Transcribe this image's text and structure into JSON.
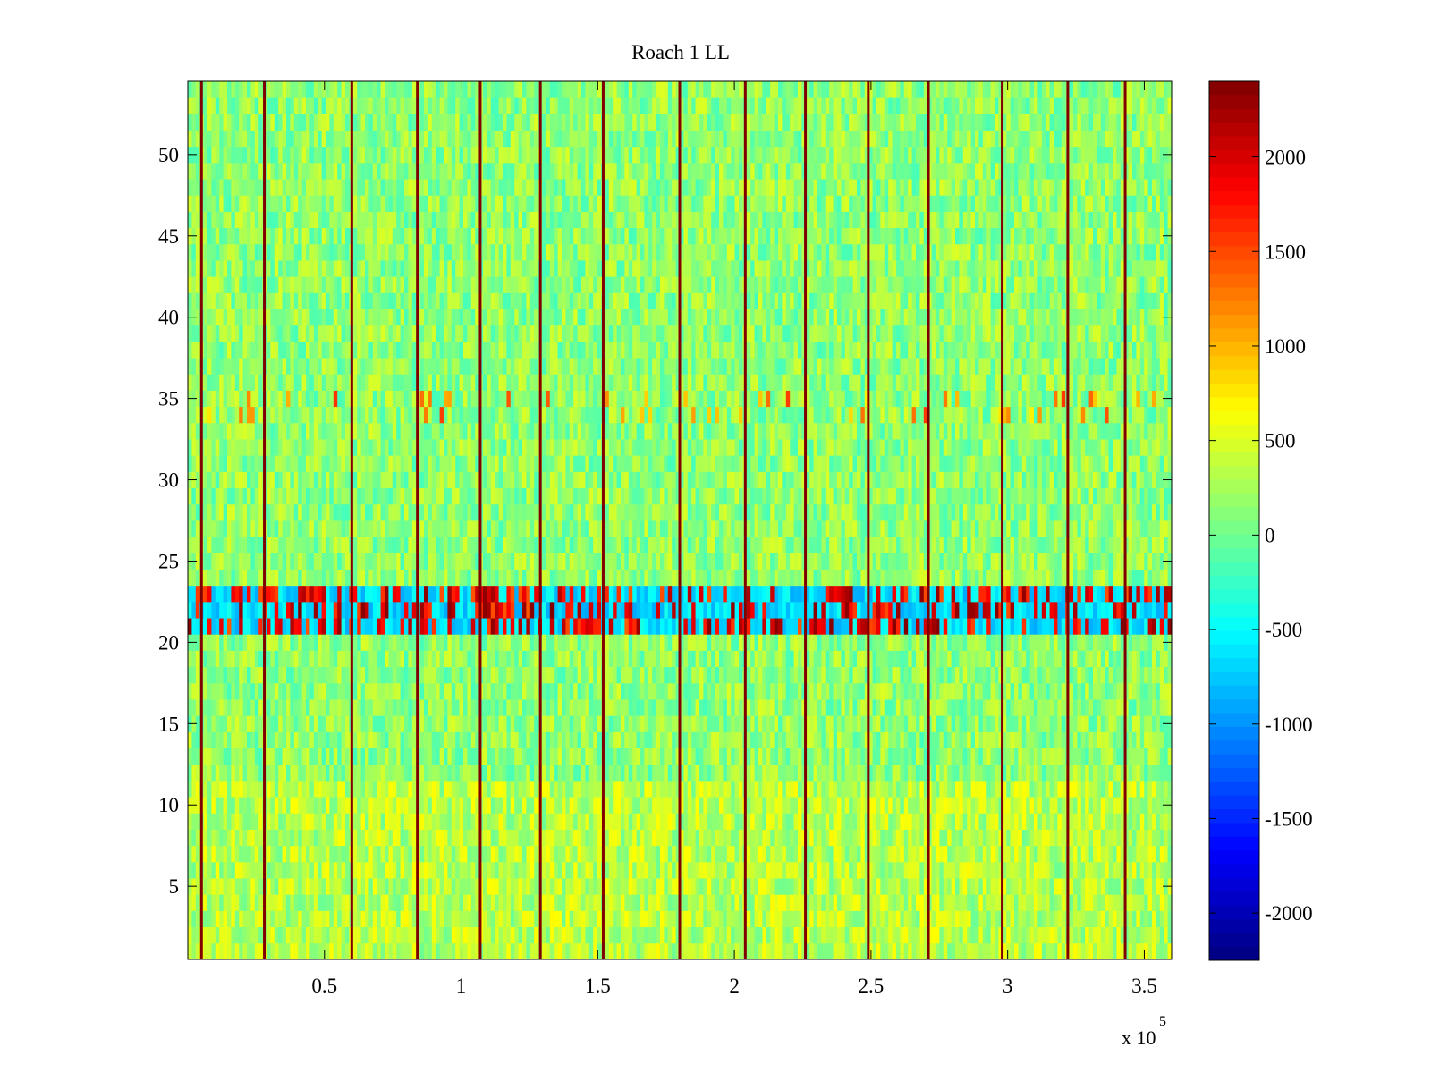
{
  "chart_data": {
    "type": "heatmap",
    "title": "Roach 1 LL",
    "xlabel": "",
    "ylabel": "",
    "x_exponent_label": "x 10",
    "x_exponent_power": "5",
    "xlim": [
      0,
      360000
    ],
    "ylim": [
      0.5,
      54.5
    ],
    "xticks": [
      {
        "value": 50000,
        "label": "0.5"
      },
      {
        "value": 100000,
        "label": "1"
      },
      {
        "value": 150000,
        "label": "1.5"
      },
      {
        "value": 200000,
        "label": "2"
      },
      {
        "value": 250000,
        "label": "2.5"
      },
      {
        "value": 300000,
        "label": "3"
      },
      {
        "value": 350000,
        "label": "3.5"
      }
    ],
    "yticks": [
      {
        "value": 5,
        "label": "5"
      },
      {
        "value": 10,
        "label": "10"
      },
      {
        "value": 15,
        "label": "15"
      },
      {
        "value": 20,
        "label": "20"
      },
      {
        "value": 25,
        "label": "25"
      },
      {
        "value": 30,
        "label": "30"
      },
      {
        "value": 35,
        "label": "35"
      },
      {
        "value": 40,
        "label": "40"
      },
      {
        "value": 45,
        "label": "45"
      },
      {
        "value": 50,
        "label": "50"
      }
    ],
    "rows": 54,
    "color_limits": [
      -2250,
      2400
    ],
    "colormap": "jet",
    "colorbar_ticks": [
      {
        "value": 2000,
        "label": "2000"
      },
      {
        "value": 1500,
        "label": "1500"
      },
      {
        "value": 1000,
        "label": "1000"
      },
      {
        "value": 500,
        "label": "500"
      },
      {
        "value": 0,
        "label": "0"
      },
      {
        "value": -500,
        "label": "-500"
      },
      {
        "value": -1000,
        "label": "-1000"
      },
      {
        "value": -1500,
        "label": "-1500"
      },
      {
        "value": -2000,
        "label": "-2000"
      }
    ],
    "background_level": 150,
    "high_x_lines": [
      5000,
      28000,
      60000,
      84000,
      107000,
      129000,
      152000,
      180000,
      204000,
      226000,
      249000,
      271000,
      298000,
      322000,
      343000
    ],
    "high_line_value": 2400,
    "bands": [
      {
        "row_from": 21,
        "row_to": 23,
        "description": "strongly alternating high/low values"
      },
      {
        "row_from": 34,
        "row_to": 35,
        "description": "sparse elevated values"
      }
    ]
  }
}
